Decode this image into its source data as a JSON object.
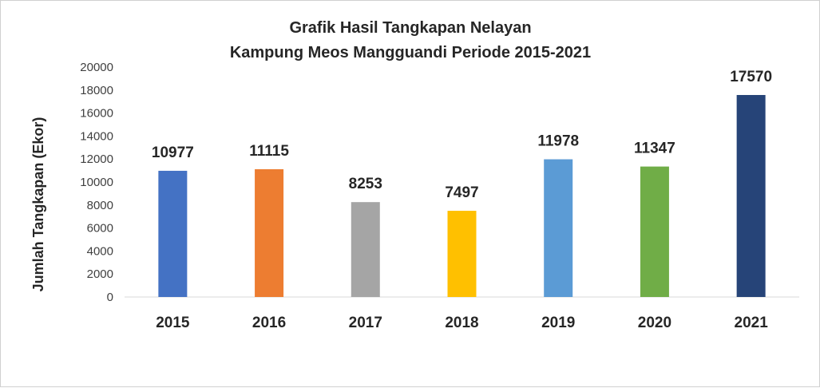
{
  "chart_data": {
    "type": "bar",
    "title_line1": "Grafik Hasil Tangkapan Nelayan",
    "title_line2": "Kampung Meos Mangguandi Periode 2015-2021",
    "ylabel": "Jumlah Tangkapan (Ekor)",
    "xlabel": "",
    "categories": [
      "2015",
      "2016",
      "2017",
      "2018",
      "2019",
      "2020",
      "2021"
    ],
    "values": [
      10977,
      11115,
      8253,
      7497,
      11978,
      11347,
      17570
    ],
    "data_labels": [
      "10977",
      "11115",
      "8253",
      "7497",
      "11978",
      "11347",
      "17570"
    ],
    "colors": [
      "#4472C4",
      "#ED7D31",
      "#A5A5A5",
      "#FFC000",
      "#5B9BD5",
      "#70AD47",
      "#264478"
    ],
    "ylim": [
      0,
      20000
    ],
    "yticks": [
      0,
      2000,
      4000,
      6000,
      8000,
      10000,
      12000,
      14000,
      16000,
      18000,
      20000
    ],
    "ytick_labels": [
      "0",
      "2000",
      "4000",
      "6000",
      "8000",
      "10000",
      "12000",
      "14000",
      "16000",
      "18000",
      "20000"
    ],
    "grid": false,
    "legend": "none"
  }
}
